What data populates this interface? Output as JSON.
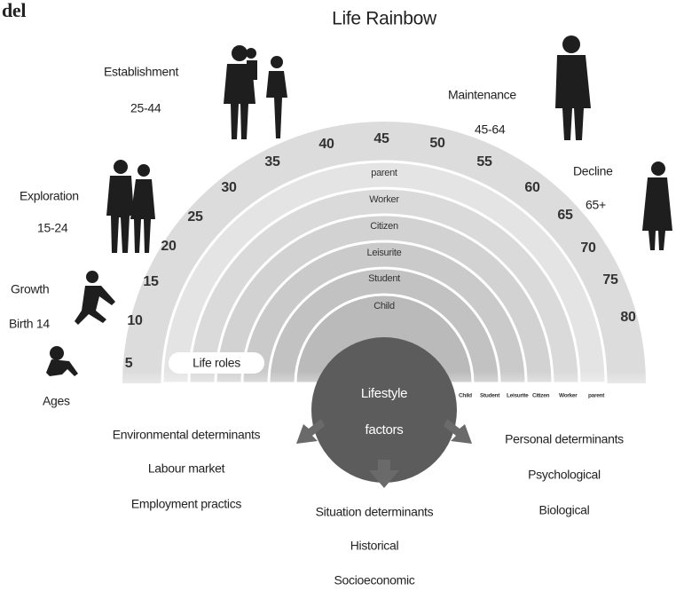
{
  "header": {
    "corner_text": "del",
    "title": "Life Rainbow"
  },
  "stages": [
    {
      "label": "Establishment",
      "ages": "25-44"
    },
    {
      "label": "Maintenance",
      "ages": "45-64"
    },
    {
      "label": "Exploration",
      "ages": "15-24"
    },
    {
      "label": "Decline",
      "ages": "65+"
    },
    {
      "label": "Growth",
      "ages": "Birth 14"
    }
  ],
  "ages_label": "Ages",
  "age_scale": [
    5,
    10,
    15,
    20,
    25,
    30,
    35,
    40,
    45,
    50,
    55,
    60,
    65,
    70,
    75,
    80
  ],
  "roles": [
    "parent",
    "Worker",
    "Citizen",
    "Leisurite",
    "Student",
    "Child"
  ],
  "roles_label": "Life roles",
  "center": {
    "line1": "Lifestyle",
    "line2": "factors"
  },
  "band_key": [
    "Child",
    "Student",
    "Leisurite",
    "Citizen",
    "Worker",
    "parent"
  ],
  "determinants": [
    {
      "title": "Environmental determinants",
      "items": [
        "Labour market",
        "Employment practics"
      ]
    },
    {
      "title": "Situation determinants",
      "items": [
        "Historical",
        "Socioeconomic"
      ]
    },
    {
      "title": "Personal determinants",
      "items": [
        "Psychological",
        "Biological"
      ]
    }
  ]
}
